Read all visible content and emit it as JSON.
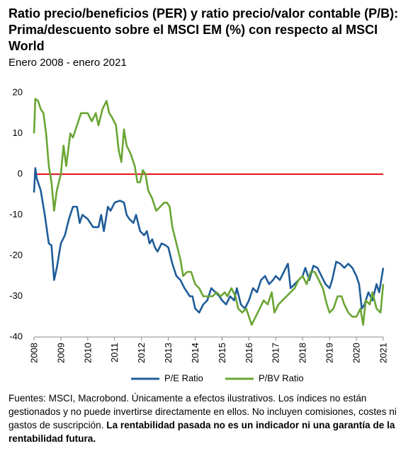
{
  "chart_data": {
    "type": "line",
    "title": "Ratio precio/beneficios (PER) y ratio precio/valor contable (P/B): Prima/descuento sobre el MSCI EM (%) con respecto al MSCI World",
    "subtitle": "Enero 2008 - enero 2021",
    "xlim": [
      2008,
      2021
    ],
    "xticks": [
      2008,
      2009,
      2010,
      2011,
      2012,
      2013,
      2014,
      2015,
      2016,
      2017,
      2018,
      2019,
      2020,
      2021
    ],
    "ylim": [
      -40,
      20
    ],
    "yticks": [
      -40,
      -30,
      -20,
      -10,
      0,
      10,
      20
    ],
    "grid": false,
    "zero_line": {
      "value": 0,
      "color": "#e8141c"
    },
    "legend": "bottom",
    "series": [
      {
        "name": "P/E Ratio",
        "color": "#1f5c99",
        "x": [
          2008.0,
          2008.05,
          2008.1,
          2008.25,
          2008.4,
          2008.55,
          2008.65,
          2008.75,
          2008.85,
          2009.0,
          2009.15,
          2009.3,
          2009.45,
          2009.6,
          2009.7,
          2009.8,
          2010.0,
          2010.2,
          2010.4,
          2010.5,
          2010.6,
          2010.75,
          2010.85,
          2011.0,
          2011.2,
          2011.35,
          2011.45,
          2011.55,
          2011.7,
          2011.8,
          2011.95,
          2012.1,
          2012.2,
          2012.3,
          2012.4,
          2012.5,
          2012.6,
          2012.75,
          2012.9,
          2013.0,
          2013.15,
          2013.3,
          2013.45,
          2013.6,
          2013.8,
          2013.9,
          2014.0,
          2014.15,
          2014.3,
          2014.45,
          2014.6,
          2014.75,
          2014.9,
          2015.0,
          2015.15,
          2015.3,
          2015.45,
          2015.55,
          2015.7,
          2015.85,
          2016.0,
          2016.15,
          2016.3,
          2016.45,
          2016.6,
          2016.75,
          2016.9,
          2017.0,
          2017.15,
          2017.3,
          2017.45,
          2017.55,
          2017.7,
          2017.85,
          2018.0,
          2018.1,
          2018.25,
          2018.4,
          2018.55,
          2018.7,
          2018.85,
          2019.0,
          2019.1,
          2019.25,
          2019.4,
          2019.55,
          2019.7,
          2019.85,
          2020.0,
          2020.1,
          2020.2,
          2020.3,
          2020.45,
          2020.6,
          2020.75,
          2020.85,
          2020.95,
          2021.0
        ],
        "values": [
          -4.5,
          1.5,
          -1,
          -4,
          -10,
          -17,
          -17.5,
          -26,
          -23,
          -17,
          -15,
          -11,
          -8,
          -8,
          -12,
          -10,
          -11,
          -13,
          -13,
          -10,
          -14,
          -8,
          -9,
          -7,
          -6.5,
          -7,
          -10,
          -11,
          -12,
          -10,
          -14,
          -15,
          -14,
          -17,
          -16,
          -18,
          -19,
          -17,
          -17.5,
          -18,
          -22,
          -25,
          -26,
          -28,
          -30,
          -30,
          -33,
          -34,
          -32,
          -31,
          -28,
          -29,
          -30,
          -31,
          -32,
          -30,
          -31,
          -28,
          -32,
          -33,
          -31,
          -28,
          -29,
          -26,
          -25,
          -27,
          -26,
          -25,
          -26,
          -24,
          -22,
          -28,
          -27,
          -26,
          -25,
          -23,
          -26,
          -22.5,
          -23,
          -25,
          -27,
          -28,
          -26,
          -21.5,
          -22,
          -23,
          -22,
          -23,
          -25,
          -27,
          -33,
          -32,
          -29,
          -31,
          -27,
          -29,
          -25,
          -23
        ]
      },
      {
        "name": "P/BV Ratio",
        "color": "#6aa534",
        "x": [
          2008.0,
          2008.05,
          2008.15,
          2008.25,
          2008.35,
          2008.45,
          2008.55,
          2008.65,
          2008.75,
          2008.85,
          2009.0,
          2009.1,
          2009.2,
          2009.35,
          2009.45,
          2009.6,
          2009.75,
          2009.9,
          2010.0,
          2010.15,
          2010.3,
          2010.4,
          2010.55,
          2010.7,
          2010.8,
          2010.9,
          2011.05,
          2011.15,
          2011.25,
          2011.35,
          2011.45,
          2011.6,
          2011.75,
          2011.85,
          2011.95,
          2012.05,
          2012.15,
          2012.25,
          2012.4,
          2012.55,
          2012.7,
          2012.85,
          2012.95,
          2013.05,
          2013.15,
          2013.3,
          2013.45,
          2013.55,
          2013.7,
          2013.85,
          2014.0,
          2014.15,
          2014.3,
          2014.5,
          2014.65,
          2014.8,
          2014.95,
          2015.1,
          2015.2,
          2015.35,
          2015.5,
          2015.6,
          2015.75,
          2015.9,
          2016.0,
          2016.1,
          2016.25,
          2016.4,
          2016.55,
          2016.7,
          2016.85,
          2016.95,
          2017.1,
          2017.25,
          2017.4,
          2017.55,
          2017.7,
          2017.85,
          2018.0,
          2018.15,
          2018.3,
          2018.45,
          2018.6,
          2018.75,
          2018.9,
          2019.0,
          2019.15,
          2019.3,
          2019.45,
          2019.55,
          2019.7,
          2019.85,
          2020.0,
          2020.15,
          2020.25,
          2020.35,
          2020.5,
          2020.6,
          2020.75,
          2020.9,
          2021.0
        ],
        "values": [
          10,
          18.5,
          18,
          16,
          15,
          10,
          2,
          -2,
          -9,
          -4,
          0,
          7,
          2,
          10,
          9,
          12,
          15,
          15,
          15,
          13,
          15,
          12,
          16,
          18,
          15,
          14,
          12,
          6,
          3,
          11,
          7,
          5,
          2,
          -2,
          -2,
          1,
          0,
          -4,
          -6,
          -9,
          -8,
          -7,
          -7,
          -8,
          -13,
          -17,
          -21,
          -25,
          -24,
          -24,
          -27,
          -28,
          -30,
          -30,
          -30,
          -29,
          -30,
          -29,
          -30,
          -28,
          -30,
          -33,
          -34,
          -33,
          -35,
          -37,
          -35,
          -33,
          -31,
          -32,
          -29,
          -34,
          -32,
          -31,
          -30,
          -29,
          -28,
          -26,
          -25,
          -27,
          -24,
          -24,
          -26,
          -28,
          -32,
          -34,
          -33,
          -30,
          -30,
          -32,
          -34,
          -35,
          -35,
          -33,
          -37,
          -31,
          -32,
          -29,
          -33,
          -34,
          -27
        ]
      }
    ],
    "footnote": {
      "text": "Fuentes: MSCI, Macrobond. Únicamente a efectos ilustrativos. Los índices no están gestionados y no puede invertirse directamente en ellos. No incluyen comisiones, costes ni gastos de suscripción.",
      "bold": "La rentabilidad pasada no es un indicador ni una garantía de la rentabilidad futura."
    }
  }
}
